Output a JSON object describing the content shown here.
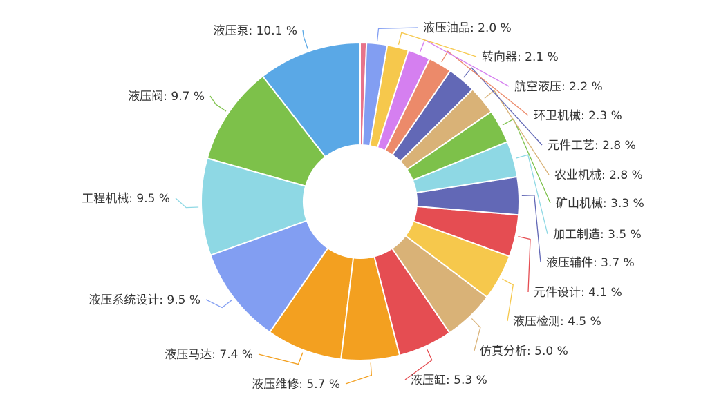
{
  "chart_data": {
    "type": "pie",
    "title": "",
    "labels": [
      "液压泵",
      "液压阀",
      "工程机械",
      "液压系统设计",
      "液压马达",
      "液压维修",
      "液压缸",
      "仿真分析",
      "液压检测",
      "元件设计",
      "液压辅件",
      "加工制造",
      "矿山机械",
      "农业机械",
      "元件工艺",
      "环卫机械",
      "航空液压",
      "转向器",
      "液压油品"
    ],
    "values": [
      10.1,
      9.7,
      9.5,
      9.5,
      7.4,
      5.7,
      5.3,
      5.0,
      4.5,
      4.1,
      3.7,
      3.5,
      3.3,
      2.8,
      2.8,
      2.3,
      2.2,
      2.1,
      2.0
    ],
    "display_labels": [
      "液压泵: 10.1 %",
      "液压阀: 9.7 %",
      "工程机械: 9.5 %",
      "液压系统设计: 9.5 %",
      "液压马达: 7.4 %",
      "液压维修: 5.7 %",
      "液压缸: 5.3 %",
      "仿真分析: 5.0 %",
      "液压检测: 4.5 %",
      "元件设计: 4.1 %",
      "液压辅件: 3.7 %",
      "加工制造: 3.5 %",
      "矿山机械: 3.3 %",
      "农业机械: 2.8 %",
      "元件工艺: 2.8 %",
      "环卫机械: 2.3 %",
      "航空液压: 2.2 %",
      "转向器: 2.1 %",
      "液压油品: 2.0 %"
    ],
    "colors": [
      "#5aa8e6",
      "#7dc14a",
      "#8ed8e4",
      "#829ef2",
      "#f3a020",
      "#f3a020",
      "#e54d52",
      "#d9b277",
      "#f6c84c",
      "#e54d52",
      "#6268b6",
      "#8ed8e4",
      "#7dc14a",
      "#d9b277",
      "#6268b6",
      "#ec8a6a",
      "#d57ff0",
      "#f6c84c",
      "#829ef2"
    ],
    "hidden_slice_color": "#e7738b",
    "donut": true,
    "unit": "%"
  }
}
